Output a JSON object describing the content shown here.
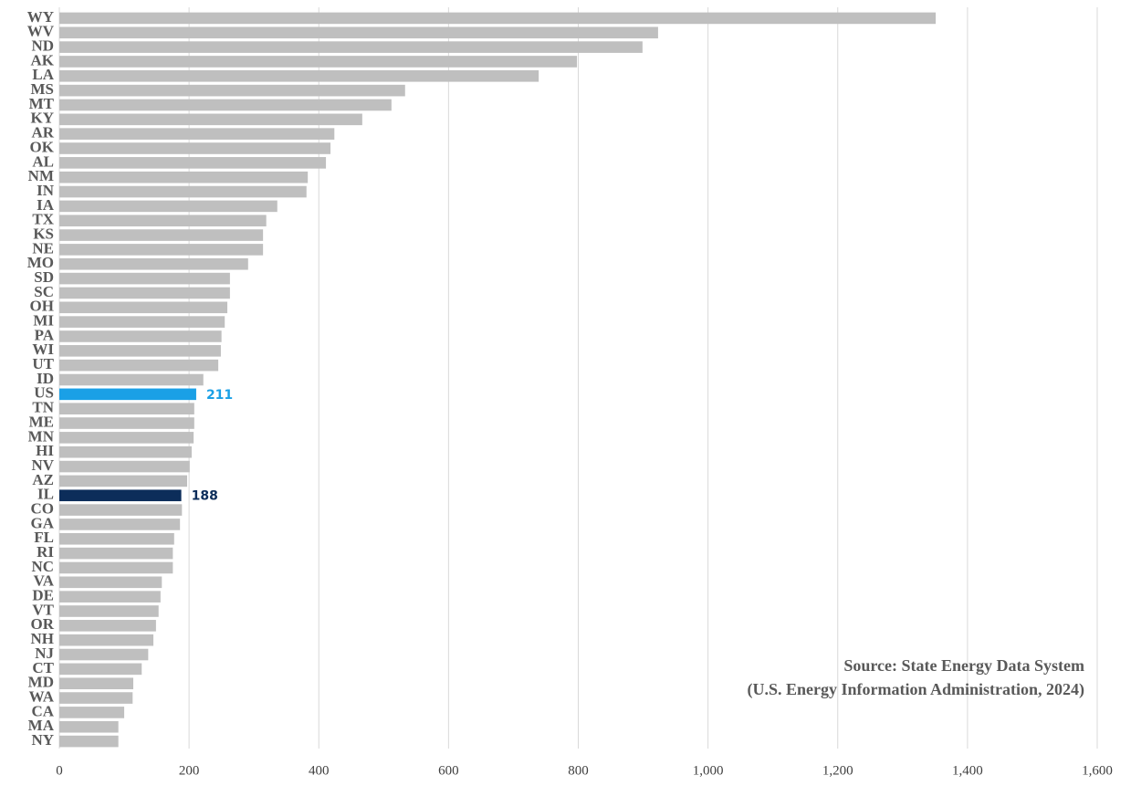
{
  "chart_data": {
    "type": "bar",
    "orientation": "horizontal",
    "categories": [
      "WY",
      "WV",
      "ND",
      "AK",
      "LA",
      "MS",
      "MT",
      "KY",
      "AR",
      "OK",
      "AL",
      "NM",
      "IN",
      "IA",
      "TX",
      "KS",
      "NE",
      "MO",
      "SD",
      "SC",
      "OH",
      "MI",
      "PA",
      "WI",
      "UT",
      "ID",
      "US",
      "TN",
      "ME",
      "MN",
      "HI",
      "NV",
      "AZ",
      "IL",
      "CO",
      "GA",
      "FL",
      "RI",
      "NC",
      "VA",
      "DE",
      "VT",
      "OR",
      "NH",
      "NJ",
      "CT",
      "MD",
      "WA",
      "CA",
      "MA",
      "NY"
    ],
    "values": [
      1351,
      923,
      899,
      798,
      739,
      533,
      512,
      467,
      424,
      418,
      411,
      383,
      381,
      336,
      319,
      314,
      314,
      291,
      263,
      263,
      259,
      255,
      250,
      249,
      245,
      222,
      211,
      208,
      208,
      207,
      204,
      201,
      197,
      188,
      189,
      186,
      177,
      175,
      175,
      158,
      156,
      153,
      149,
      145,
      137,
      127,
      114,
      113,
      100,
      91,
      91
    ],
    "value_labels": [
      null,
      null,
      null,
      null,
      null,
      null,
      null,
      null,
      null,
      null,
      null,
      null,
      null,
      null,
      null,
      null,
      null,
      null,
      null,
      null,
      null,
      null,
      null,
      null,
      null,
      null,
      "211",
      null,
      null,
      null,
      null,
      null,
      null,
      "188",
      null,
      null,
      null,
      null,
      null,
      null,
      null,
      null,
      null,
      null,
      null,
      null,
      null,
      null,
      null,
      null,
      null
    ],
    "colors": [
      "#bfbfbf",
      "#bfbfbf",
      "#bfbfbf",
      "#bfbfbf",
      "#bfbfbf",
      "#bfbfbf",
      "#bfbfbf",
      "#bfbfbf",
      "#bfbfbf",
      "#bfbfbf",
      "#bfbfbf",
      "#bfbfbf",
      "#bfbfbf",
      "#bfbfbf",
      "#bfbfbf",
      "#bfbfbf",
      "#bfbfbf",
      "#bfbfbf",
      "#bfbfbf",
      "#bfbfbf",
      "#bfbfbf",
      "#bfbfbf",
      "#bfbfbf",
      "#bfbfbf",
      "#bfbfbf",
      "#bfbfbf",
      "#1aa0e6",
      "#bfbfbf",
      "#bfbfbf",
      "#bfbfbf",
      "#bfbfbf",
      "#bfbfbf",
      "#bfbfbf",
      "#0c2d5a",
      "#bfbfbf",
      "#bfbfbf",
      "#bfbfbf",
      "#bfbfbf",
      "#bfbfbf",
      "#bfbfbf",
      "#bfbfbf",
      "#bfbfbf",
      "#bfbfbf",
      "#bfbfbf",
      "#bfbfbf",
      "#bfbfbf",
      "#bfbfbf",
      "#bfbfbf",
      "#bfbfbf",
      "#bfbfbf",
      "#bfbfbf"
    ],
    "xlim": [
      0,
      1600
    ],
    "xticks": [
      0,
      200,
      400,
      600,
      800,
      {
        "value": 1000,
        "label": "1,000"
      },
      {
        "value": 1200,
        "label": "1,200"
      },
      {
        "value": 1400,
        "label": "1,400"
      },
      {
        "value": 1600,
        "label": "1,600"
      }
    ],
    "grid": true,
    "annotations": [
      "Source: State Energy Data System",
      "(U.S. Energy Information Administration, 2024)"
    ]
  }
}
